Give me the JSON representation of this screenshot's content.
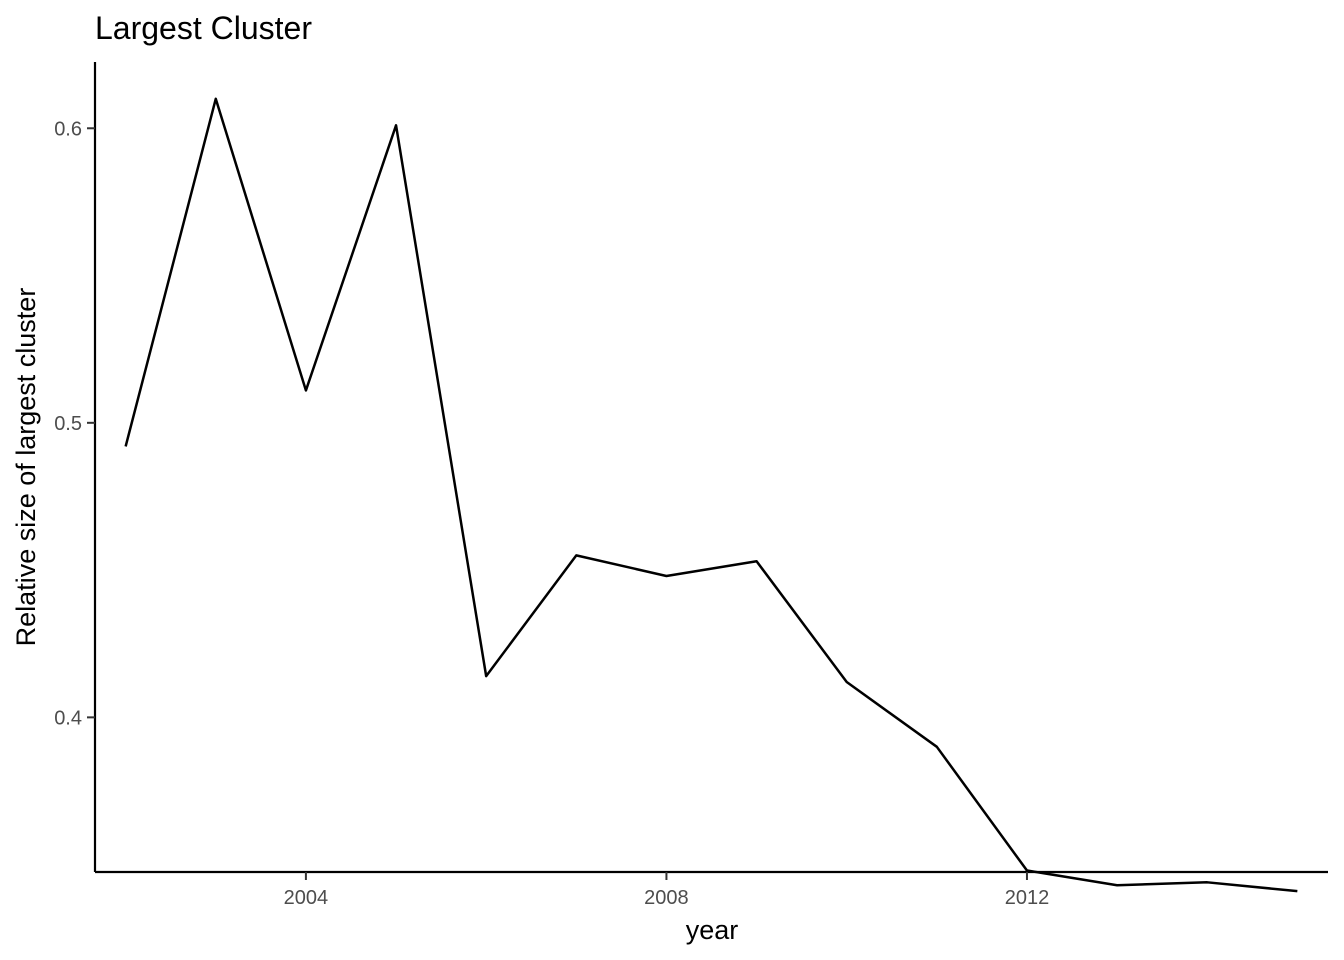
{
  "chart_data": {
    "type": "line",
    "title": "Largest Cluster",
    "xlabel": "year",
    "ylabel": "Relative size of largest cluster",
    "xlim": [
      2001.66,
      2015.34
    ],
    "ylim": [
      0.3475,
      0.6225
    ],
    "x_ticks": [
      2004,
      2008,
      2012
    ],
    "x_tick_labels": [
      "2004",
      "2008",
      "2012"
    ],
    "y_ticks": [
      0.4,
      0.5,
      0.6
    ],
    "y_tick_labels": [
      "0.4",
      "0.5",
      "0.6"
    ],
    "grid": false,
    "legend": "none",
    "line_color": "#000000",
    "series": [
      {
        "x": [
          2002,
          2003,
          2004,
          2005,
          2006,
          2007,
          2008,
          2009,
          2010,
          2011,
          2012,
          2013,
          2014,
          2015
        ],
        "values": [
          0.492,
          0.61,
          0.511,
          0.601,
          0.414,
          0.455,
          0.448,
          0.453,
          0.412,
          0.39,
          0.348,
          0.343,
          0.344,
          0.341
        ]
      }
    ]
  }
}
